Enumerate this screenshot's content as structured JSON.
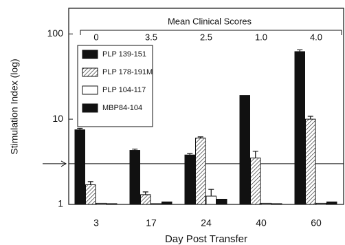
{
  "chart_data": {
    "type": "bar",
    "x_label": "Day Post Transfer",
    "y_label": "Stimulation Index (log)",
    "categories": [
      "3",
      "17",
      "24",
      "40",
      "60"
    ],
    "series": [
      {
        "name": "PLP 139-151",
        "color": "#111111",
        "values": [
          7.5,
          4.3,
          3.8,
          19,
          62
        ],
        "errors": [
          0.3,
          0.15,
          0.15,
          0,
          3
        ]
      },
      {
        "name": "PLP 178-191M",
        "color": "#222222",
        "hatch": true,
        "values": [
          1.7,
          1.3,
          6.0,
          3.5,
          10
        ],
        "errors": [
          0.15,
          0.1,
          0.2,
          0.7,
          0.8
        ]
      },
      {
        "name": "PLP 104-117",
        "color": "#ffffff",
        "values": [
          1.03,
          1.02,
          1.25,
          1.03,
          1.03
        ],
        "errors": [
          0,
          0,
          0.25,
          0,
          0
        ]
      },
      {
        "name": "MBP84-104",
        "color": "#111111",
        "values": [
          1.02,
          1.07,
          1.15,
          1.02,
          1.07
        ],
        "errors": [
          0,
          0,
          0,
          0,
          0
        ]
      }
    ],
    "log_scale": true,
    "ylim": [
      1,
      200
    ],
    "yticks": [
      1,
      10,
      100
    ],
    "reference_line": 3,
    "legend": "upper left",
    "annotation": {
      "title": "Mean Clinical Scores",
      "labels": [
        "0",
        "3.5",
        "2.5",
        "1.0",
        "4.0"
      ]
    }
  }
}
